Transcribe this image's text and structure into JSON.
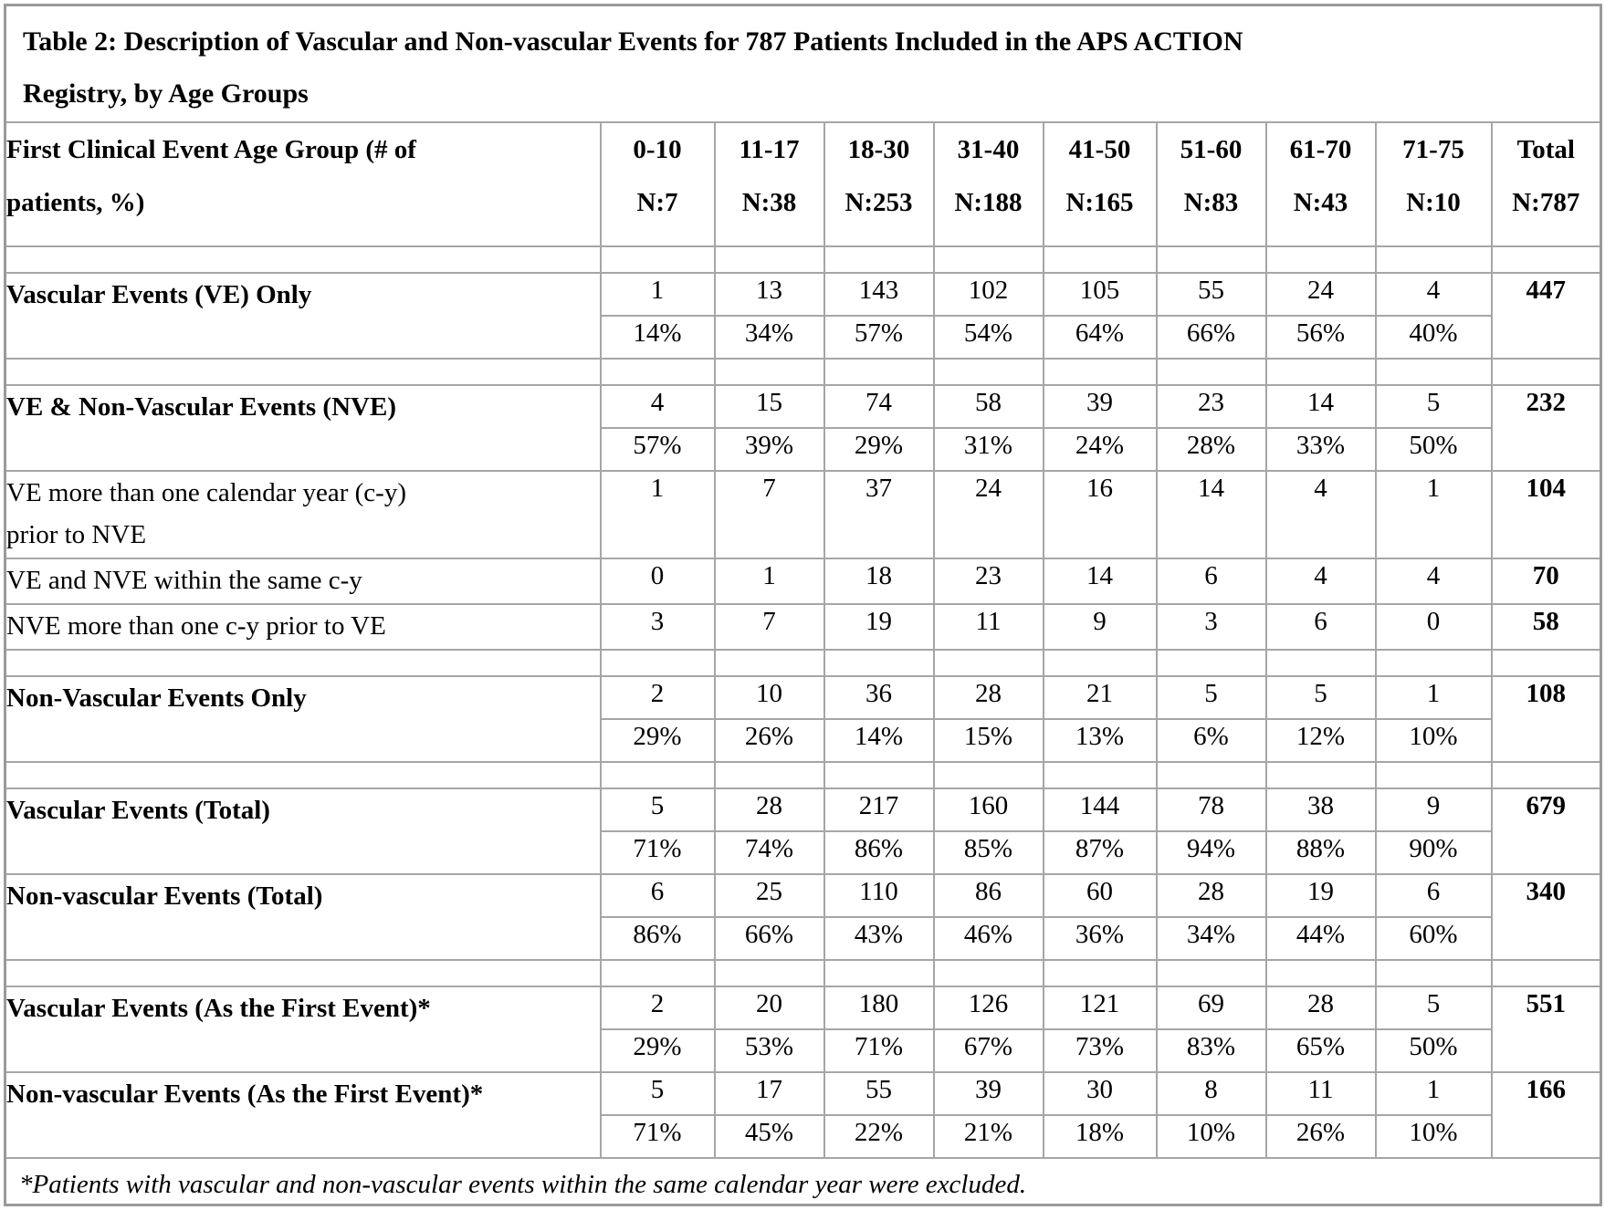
{
  "title": {
    "full": "Table 2: Description of Vascular and Non-vascular Events for 787 Patients Included in the APS ACTION Registry, by Age Groups",
    "line1": "Table 2: Description of Vascular and Non-vascular Events for 787 Patients Included in the APS ACTION",
    "line2": "Registry, by Age Groups"
  },
  "header": {
    "row_label": "First Clinical Event Age Group (# of patients, %)",
    "age_groups": [
      "0-10",
      "11-17",
      "18-30",
      "31-40",
      "41-50",
      "51-60",
      "61-70",
      "71-75"
    ],
    "n_labels": [
      "N:7",
      "N:38",
      "N:253",
      "N:188",
      "N:165",
      "N:83",
      "N:43",
      "N:10"
    ],
    "total_label": "Total",
    "total_n_label": "N:787"
  },
  "sections": [
    {
      "label": "Vascular Events (VE) Only",
      "bold": true,
      "indent": false,
      "spacer_before": true,
      "tall": false,
      "counts": [
        "1",
        "13",
        "143",
        "102",
        "105",
        "55",
        "24",
        "4"
      ],
      "percents": [
        "14%",
        "34%",
        "57%",
        "54%",
        "64%",
        "66%",
        "56%",
        "40%"
      ],
      "total": "447"
    },
    {
      "label": "VE & Non-Vascular Events (NVE)",
      "bold": true,
      "indent": false,
      "spacer_before": true,
      "tall": false,
      "counts": [
        "4",
        "15",
        "74",
        "58",
        "39",
        "23",
        "14",
        "5"
      ],
      "percents": [
        "57%",
        "39%",
        "29%",
        "31%",
        "24%",
        "28%",
        "33%",
        "50%"
      ],
      "total": "232"
    },
    {
      "label": "VE more than one calendar year (c-y) prior to NVE",
      "bold": false,
      "indent": true,
      "spacer_before": false,
      "tall": true,
      "counts": [
        "1",
        "7",
        "37",
        "24",
        "16",
        "14",
        "4",
        "1"
      ],
      "percents": null,
      "total": "104"
    },
    {
      "label": "VE and NVE within the same c-y",
      "bold": false,
      "indent": true,
      "spacer_before": false,
      "tall": false,
      "counts": [
        "0",
        "1",
        "18",
        "23",
        "14",
        "6",
        "4",
        "4"
      ],
      "percents": null,
      "total": "70"
    },
    {
      "label": "NVE more than one c-y prior to VE",
      "bold": false,
      "indent": true,
      "spacer_before": false,
      "tall": false,
      "counts": [
        "3",
        "7",
        "19",
        "11",
        "9",
        "3",
        "6",
        "0"
      ],
      "percents": null,
      "total": "58"
    },
    {
      "label": "Non-Vascular Events Only",
      "bold": true,
      "indent": false,
      "spacer_before": true,
      "tall": false,
      "counts": [
        "2",
        "10",
        "36",
        "28",
        "21",
        "5",
        "5",
        "1"
      ],
      "percents": [
        "29%",
        "26%",
        "14%",
        "15%",
        "13%",
        "6%",
        "12%",
        "10%"
      ],
      "total": "108"
    },
    {
      "label": "Vascular Events (Total)",
      "bold": true,
      "indent": false,
      "spacer_before": true,
      "tall": false,
      "counts": [
        "5",
        "28",
        "217",
        "160",
        "144",
        "78",
        "38",
        "9"
      ],
      "percents": [
        "71%",
        "74%",
        "86%",
        "85%",
        "87%",
        "94%",
        "88%",
        "90%"
      ],
      "total": "679"
    },
    {
      "label": "Non-vascular Events (Total)",
      "bold": true,
      "indent": false,
      "spacer_before": false,
      "tall": false,
      "counts": [
        "6",
        "25",
        "110",
        "86",
        "60",
        "28",
        "19",
        "6"
      ],
      "percents": [
        "86%",
        "66%",
        "43%",
        "46%",
        "36%",
        "34%",
        "44%",
        "60%"
      ],
      "total": "340"
    },
    {
      "label": "Vascular Events (As the First Event)*",
      "bold": true,
      "indent": false,
      "spacer_before": true,
      "tall": false,
      "counts": [
        "2",
        "20",
        "180",
        "126",
        "121",
        "69",
        "28",
        "5"
      ],
      "percents": [
        "29%",
        "53%",
        "71%",
        "67%",
        "73%",
        "83%",
        "65%",
        "50%"
      ],
      "total": "551"
    },
    {
      "label": "Non-vascular Events (As the First Event)*",
      "bold": true,
      "indent": false,
      "spacer_before": false,
      "tall": false,
      "counts": [
        "5",
        "17",
        "55",
        "39",
        "30",
        "8",
        "11",
        "1"
      ],
      "percents": [
        "71%",
        "45%",
        "22%",
        "21%",
        "18%",
        "10%",
        "26%",
        "10%"
      ],
      "total": "166"
    }
  ],
  "footnote": "*Patients with vascular and non-vascular events within the same calendar year were excluded.",
  "colors": {
    "border": "#a6a6a6",
    "text": "#000000",
    "background": "#ffffff"
  }
}
